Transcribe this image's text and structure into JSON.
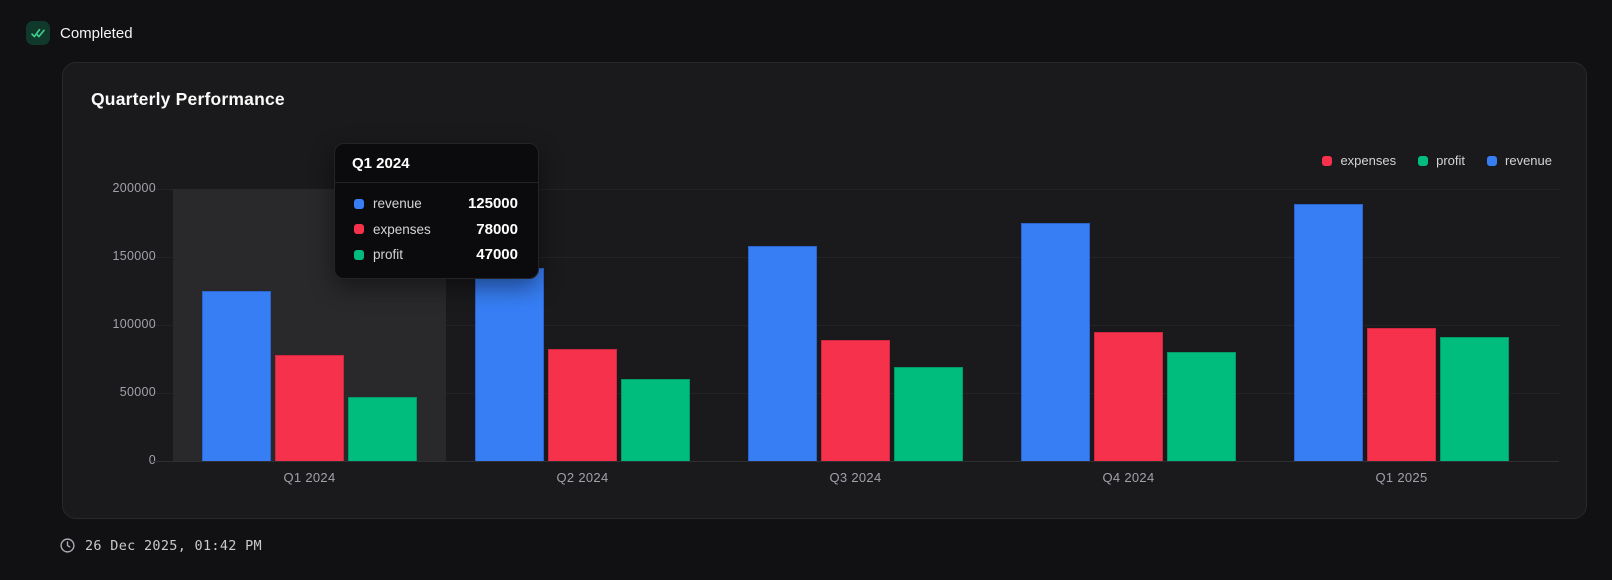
{
  "status": {
    "label": "Completed"
  },
  "card": {
    "title": "Quarterly Performance"
  },
  "legend": {
    "items": [
      {
        "label": "expenses",
        "color": "#f5314b"
      },
      {
        "label": "profit",
        "color": "#00bc7d"
      },
      {
        "label": "revenue",
        "color": "#377ef5"
      }
    ]
  },
  "tooltip": {
    "title": "Q1 2024",
    "rows": [
      {
        "label": "revenue",
        "value": "125000",
        "color": "#377ef5"
      },
      {
        "label": "expenses",
        "value": "78000",
        "color": "#f5314b"
      },
      {
        "label": "profit",
        "value": "47000",
        "color": "#00bc7d"
      }
    ]
  },
  "footer": {
    "timestamp": "26 Dec 2025, 01:42 PM"
  },
  "colors": {
    "revenue": "#377ef5",
    "expenses": "#f5314b",
    "profit": "#00bc7d",
    "check_green": "#3ecf8e",
    "background": "#111113",
    "card_background": "#1a1a1c"
  },
  "chart_data": {
    "type": "bar",
    "title": "Quarterly Performance",
    "categories": [
      "Q1 2024",
      "Q2 2024",
      "Q3 2024",
      "Q4 2024",
      "Q1 2025"
    ],
    "series": [
      {
        "name": "revenue",
        "color": "#377ef5",
        "values": [
          125000,
          142000,
          158000,
          175000,
          189000
        ]
      },
      {
        "name": "expenses",
        "color": "#f5314b",
        "values": [
          78000,
          82000,
          89000,
          95000,
          98000
        ]
      },
      {
        "name": "profit",
        "color": "#00bc7d",
        "values": [
          47000,
          60000,
          69000,
          80000,
          91000
        ]
      }
    ],
    "ylim": [
      0,
      200000
    ],
    "yticks": [
      0,
      50000,
      100000,
      150000,
      200000
    ],
    "grid": true,
    "legend_position": "top-right",
    "highlighted_category": "Q1 2024",
    "tooltip_shown_for": "Q1 2024"
  }
}
